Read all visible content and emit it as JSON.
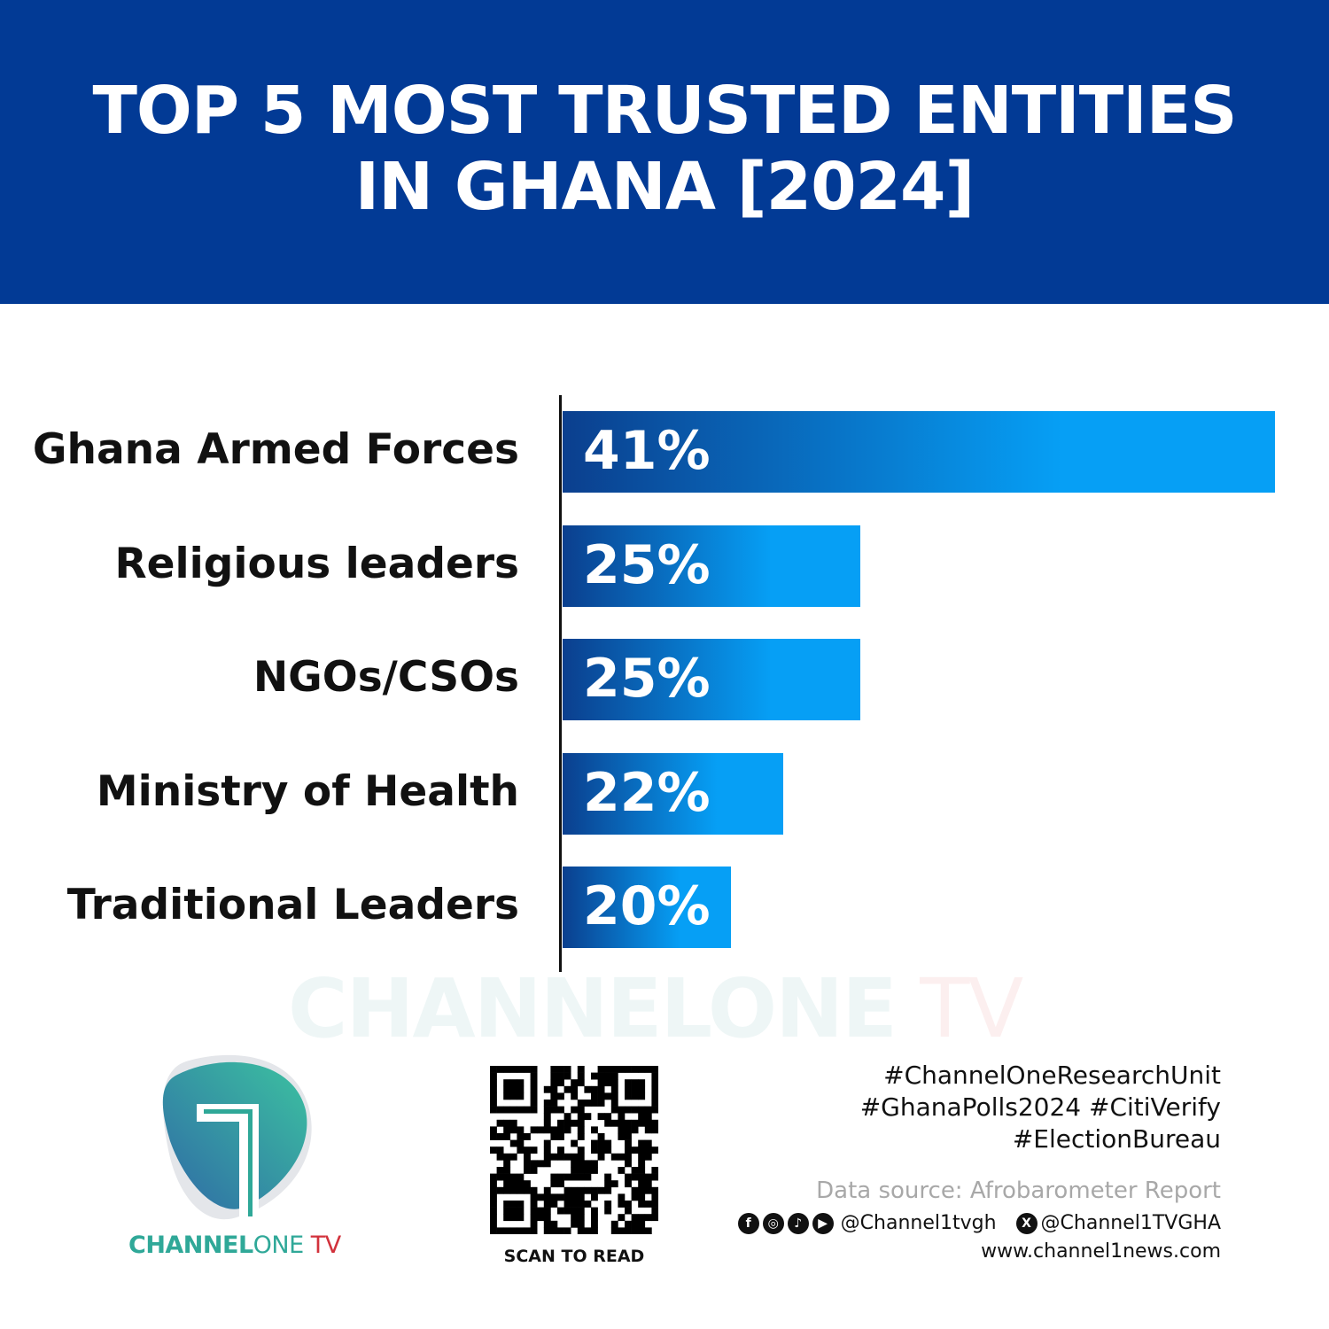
{
  "header": {
    "title_line1": "TOP 5 MOST TRUSTED ENTITIES",
    "title_line2": "IN GHANA [2024]",
    "background_color": "#023a95"
  },
  "chart_data": {
    "type": "bar",
    "orientation": "horizontal",
    "title": "TOP 5 MOST TRUSTED ENTITIES IN GHANA [2024]",
    "categories": [
      "Ghana Armed Forces",
      "Religious leaders",
      "NGOs/CSOs",
      "Ministry of Health",
      "Traditional Leaders"
    ],
    "values": [
      41,
      25,
      25,
      22,
      20
    ],
    "value_labels": [
      "41%",
      "25%",
      "25%",
      "22%",
      "20%"
    ],
    "unit": "%",
    "grid": false,
    "bar_gradient": [
      "#0b3f8e",
      "#069ff5"
    ]
  },
  "watermark": {
    "part1": "CHANNELONE",
    "part2": " TV"
  },
  "logo": {
    "part1": "CHANNEL",
    "part2": "ONE",
    "part3": " TV",
    "colors": {
      "teal": "#2fa898",
      "red": "#d2323c"
    }
  },
  "qr": {
    "caption": "SCAN TO READ"
  },
  "footer": {
    "hashtags": [
      "#ChannelOneResearchUnit",
      "#GhanaPolls2024 #CitiVerify",
      "#ElectionBureau"
    ],
    "source": "Data source: Afrobarometer Report",
    "social_icons": [
      "facebook-icon",
      "instagram-icon",
      "tiktok-icon",
      "youtube-icon"
    ],
    "handle": "@Channel1tvgh",
    "x_handle": "@Channel1TVGHA",
    "website": "www.channel1news.com"
  }
}
